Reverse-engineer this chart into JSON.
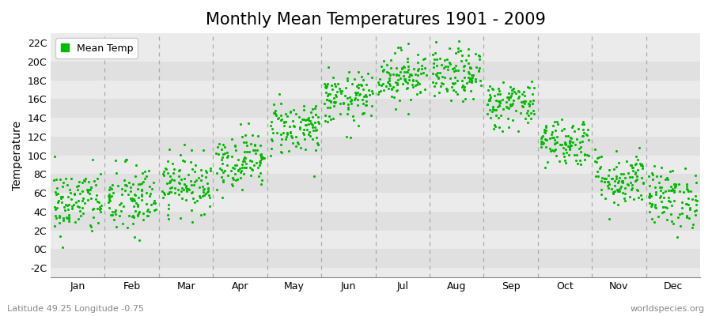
{
  "title": "Monthly Mean Temperatures 1901 - 2009",
  "ylabel": "Temperature",
  "xlabel_bottom_left": "Latitude 49.25 Longitude -0.75",
  "xlabel_bottom_right": "worldspecies.org",
  "legend_label": "Mean Temp",
  "dot_color": "#00bb00",
  "background_color": "#ffffff",
  "plot_bg_color": "#ebebeb",
  "stripe_color": "#e0e0e0",
  "ytick_labels": [
    "-2C",
    "0C",
    "2C",
    "4C",
    "6C",
    "8C",
    "10C",
    "12C",
    "14C",
    "16C",
    "18C",
    "20C",
    "22C"
  ],
  "ytick_values": [
    -2,
    0,
    2,
    4,
    6,
    8,
    10,
    12,
    14,
    16,
    18,
    20,
    22
  ],
  "ylim": [
    -3,
    23
  ],
  "months": [
    "Jan",
    "Feb",
    "Mar",
    "Apr",
    "May",
    "Jun",
    "Jul",
    "Aug",
    "Sep",
    "Oct",
    "Nov",
    "Dec"
  ],
  "monthly_mean": [
    5.0,
    5.2,
    7.0,
    9.5,
    13.0,
    16.0,
    18.5,
    18.5,
    15.5,
    11.5,
    7.5,
    5.5
  ],
  "monthly_std": [
    1.8,
    2.0,
    1.5,
    1.5,
    1.5,
    1.4,
    1.4,
    1.4,
    1.3,
    1.3,
    1.5,
    1.6
  ],
  "n_years": 109,
  "random_seed": 42,
  "marker_size": 5,
  "dashed_line_color": "#aaaaaa",
  "title_fontsize": 15,
  "axis_fontsize": 10,
  "tick_fontsize": 9,
  "legend_fontsize": 9
}
